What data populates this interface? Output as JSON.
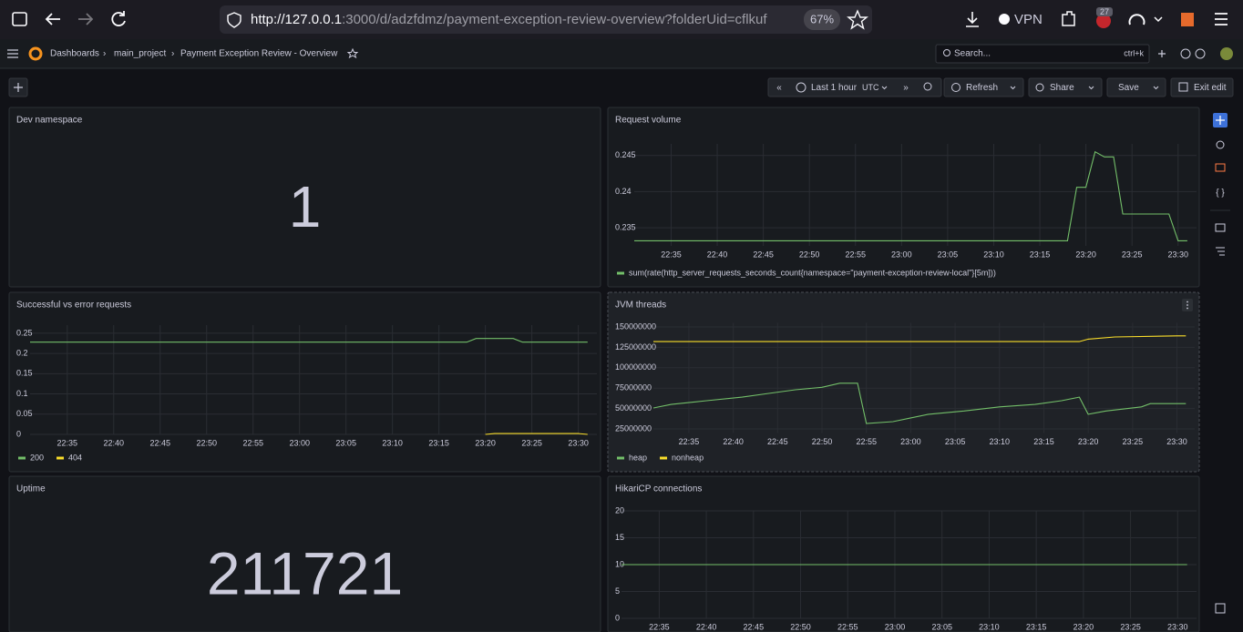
{
  "browser": {
    "url_host": "http://127.0.0.1",
    "url_rest": ":3000/d/adzfdmz/payment-exception-review-overview?folderUid=cflkuf",
    "zoom": "67%",
    "vpn": "VPN",
    "badge": "27"
  },
  "nav": {
    "breadcrumbs": [
      "Dashboards",
      "main_project",
      "Payment Exception Review - Overview"
    ],
    "search": "Search...",
    "shortcut": "ctrl+k"
  },
  "toolbar": {
    "time_range": "Last 1 hour",
    "timezone": "UTC",
    "refresh": "Refresh",
    "share": "Share",
    "save": "Save",
    "exit_edit": "Exit edit"
  },
  "panels": [
    {
      "type": "stat",
      "title": "Dev namespace",
      "value": 1,
      "color": "#73bf69"
    },
    {
      "type": "line",
      "title": "Request volume",
      "xlim": [
        "22:31",
        "23:32"
      ],
      "xticks": [
        "22:35",
        "22:40",
        "22:45",
        "22:50",
        "22:55",
        "23:00",
        "23:05",
        "23:10",
        "23:15",
        "23:20",
        "23:25",
        "23:30"
      ],
      "ylim": [
        0.2325,
        0.2466
      ],
      "yticks": [
        0.235,
        0.24,
        0.245
      ],
      "grid": true,
      "series": [
        {
          "name": "sum(rate(http_server_requests_seconds_count{namespace=\"payment-exception-review-local\"}[5m]))",
          "color": "#73bf69",
          "x": [
            "22:31",
            "23:18",
            "23:19",
            "23:20",
            "23:21",
            "23:22",
            "23:23",
            "23:24",
            "23:29",
            "23:30",
            "23:31"
          ],
          "values": [
            0.2332,
            0.2332,
            0.2406,
            0.2406,
            0.2455,
            0.2448,
            0.2448,
            0.2369,
            0.2369,
            0.2332,
            0.2332
          ]
        }
      ]
    },
    {
      "type": "line",
      "title": "Successful vs error requests",
      "xlim": [
        "22:31",
        "23:32"
      ],
      "xticks": [
        "22:35",
        "22:40",
        "22:45",
        "22:50",
        "22:55",
        "23:00",
        "23:05",
        "23:10",
        "23:15",
        "23:20",
        "23:25",
        "23:30"
      ],
      "ylim": [
        0,
        0.27
      ],
      "yticks": [
        0,
        0.05,
        0.1,
        0.15,
        0.2,
        0.25
      ],
      "grid": true,
      "series": [
        {
          "name": "200",
          "color": "#73bf69",
          "x": [
            "22:31",
            "23:18",
            "23:19",
            "23:23",
            "23:24",
            "23:31"
          ],
          "values": [
            0.228,
            0.228,
            0.237,
            0.237,
            0.228,
            0.228
          ]
        },
        {
          "name": "404",
          "color": "#fade2a",
          "x": [
            "23:20",
            "23:21",
            "23:30",
            "23:31"
          ],
          "values": [
            0,
            0.002,
            0.002,
            0
          ]
        }
      ]
    },
    {
      "type": "line",
      "title": "JVM threads",
      "xlim": [
        "22:31",
        "23:32"
      ],
      "xticks": [
        "22:35",
        "22:40",
        "22:45",
        "22:50",
        "22:55",
        "23:00",
        "23:05",
        "23:10",
        "23:15",
        "23:20",
        "23:25",
        "23:30"
      ],
      "ylim": [
        20000000,
        155000000
      ],
      "yticks": [
        25000000,
        50000000,
        75000000,
        100000000,
        125000000,
        150000000
      ],
      "grid": true,
      "series": [
        {
          "name": "heap",
          "color": "#73bf69",
          "x": [
            "22:31",
            "22:33",
            "22:37",
            "22:41",
            "22:44",
            "22:47",
            "22:50",
            "22:52",
            "22:54",
            "22:55",
            "22:58",
            "23:00",
            "23:02",
            "23:06",
            "23:10",
            "23:14",
            "23:17",
            "23:19",
            "23:20",
            "23:22",
            "23:26",
            "23:27",
            "23:31"
          ],
          "values": [
            50700000,
            55000000,
            59600000,
            64000000,
            68500000,
            73000000,
            76000000,
            81000000,
            81000000,
            31700000,
            34000000,
            38500000,
            43000000,
            47000000,
            52000000,
            55000000,
            59600000,
            64000000,
            43000000,
            47000000,
            52000000,
            56000000,
            56000000
          ]
        },
        {
          "name": "nonheap",
          "color": "#fade2a",
          "x": [
            "22:31",
            "23:19",
            "23:20",
            "23:23",
            "23:30",
            "23:31"
          ],
          "values": [
            132000000,
            132000000,
            135000000,
            137700000,
            139000000,
            139000000
          ]
        }
      ]
    },
    {
      "type": "stat",
      "title": "Uptime",
      "value": 211721,
      "color": "#73bf69"
    },
    {
      "type": "line",
      "title": "HikariCP connections",
      "xlim": [
        "22:31",
        "23:32"
      ],
      "xticks": [
        "22:35",
        "22:40",
        "22:45",
        "22:50",
        "22:55",
        "23:00",
        "23:05",
        "23:10",
        "23:15",
        "23:20",
        "23:25",
        "23:30"
      ],
      "ylim": [
        0,
        20
      ],
      "yticks": [
        0,
        5,
        10,
        15,
        20
      ],
      "grid": true,
      "series": [
        {
          "color": "#73bf69",
          "x": [
            "22:31",
            "23:31"
          ],
          "values": [
            10,
            10
          ]
        }
      ]
    }
  ]
}
